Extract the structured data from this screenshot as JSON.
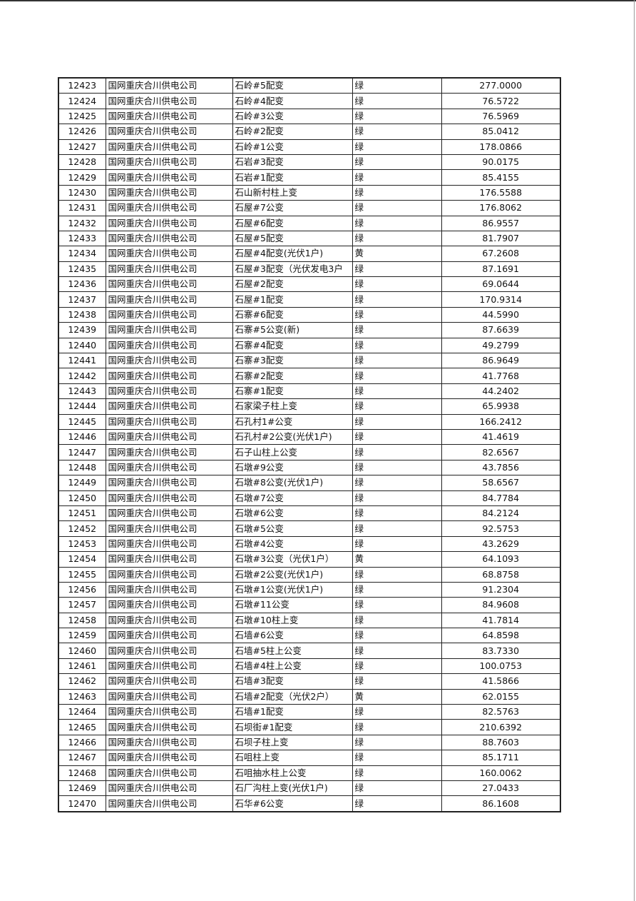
{
  "company": "国网重庆合川供电公司",
  "rows": [
    [
      "12423",
      "国网重庆合川供电公司",
      "石岭#5配变",
      "绿",
      "277.0000"
    ],
    [
      "12424",
      "国网重庆合川供电公司",
      "石岭#4配变",
      "绿",
      "76.5722"
    ],
    [
      "12425",
      "国网重庆合川供电公司",
      "石岭#3公变",
      "绿",
      "76.5969"
    ],
    [
      "12426",
      "国网重庆合川供电公司",
      "石岭#2配变",
      "绿",
      "85.0412"
    ],
    [
      "12427",
      "国网重庆合川供电公司",
      "石岭#1公变",
      "绿",
      "178.0866"
    ],
    [
      "12428",
      "国网重庆合川供电公司",
      "石岩#3配变",
      "绿",
      "90.0175"
    ],
    [
      "12429",
      "国网重庆合川供电公司",
      "石岩#1配变",
      "绿",
      "85.4155"
    ],
    [
      "12430",
      "国网重庆合川供电公司",
      "石山新村柱上变",
      "绿",
      "176.5588"
    ],
    [
      "12431",
      "国网重庆合川供电公司",
      "石屋#7公变",
      "绿",
      "176.8062"
    ],
    [
      "12432",
      "国网重庆合川供电公司",
      "石屋#6配变",
      "绿",
      "86.9557"
    ],
    [
      "12433",
      "国网重庆合川供电公司",
      "石屋#5配变",
      "绿",
      "81.7907"
    ],
    [
      "12434",
      "国网重庆合川供电公司",
      "石屋#4配变(光伏1户)",
      "黄",
      "67.2608"
    ],
    [
      "12435",
      "国网重庆合川供电公司",
      "石屋#3配变（光伏发电3户",
      "绿",
      "87.1691"
    ],
    [
      "12436",
      "国网重庆合川供电公司",
      "石屋#2配变",
      "绿",
      "69.0644"
    ],
    [
      "12437",
      "国网重庆合川供电公司",
      "石屋#1配变",
      "绿",
      "170.9314"
    ],
    [
      "12438",
      "国网重庆合川供电公司",
      "石寨#6配变",
      "绿",
      "44.5990"
    ],
    [
      "12439",
      "国网重庆合川供电公司",
      "石寨#5公变(新)",
      "绿",
      "87.6639"
    ],
    [
      "12440",
      "国网重庆合川供电公司",
      "石寨#4配变",
      "绿",
      "49.2799"
    ],
    [
      "12441",
      "国网重庆合川供电公司",
      "石寨#3配变",
      "绿",
      "86.9649"
    ],
    [
      "12442",
      "国网重庆合川供电公司",
      "石寨#2配变",
      "绿",
      "41.7768"
    ],
    [
      "12443",
      "国网重庆合川供电公司",
      "石寨#1配变",
      "绿",
      "44.2402"
    ],
    [
      "12444",
      "国网重庆合川供电公司",
      "石家梁子柱上变",
      "绿",
      "65.9938"
    ],
    [
      "12445",
      "国网重庆合川供电公司",
      "石孔村1#公变",
      "绿",
      "166.2412"
    ],
    [
      "12446",
      "国网重庆合川供电公司",
      "石孔村#2公变(光伏1户)",
      "绿",
      "41.4619"
    ],
    [
      "12447",
      "国网重庆合川供电公司",
      "石子山柱上公变",
      "绿",
      "82.6567"
    ],
    [
      "12448",
      "国网重庆合川供电公司",
      "石墩#9公变",
      "绿",
      "43.7856"
    ],
    [
      "12449",
      "国网重庆合川供电公司",
      "石墩#8公变(光伏1户)",
      "绿",
      "58.6567"
    ],
    [
      "12450",
      "国网重庆合川供电公司",
      "石墩#7公变",
      "绿",
      "84.7784"
    ],
    [
      "12451",
      "国网重庆合川供电公司",
      "石墩#6公变",
      "绿",
      "84.2124"
    ],
    [
      "12452",
      "国网重庆合川供电公司",
      "石墩#5公变",
      "绿",
      "92.5753"
    ],
    [
      "12453",
      "国网重庆合川供电公司",
      "石墩#4公变",
      "绿",
      "43.2629"
    ],
    [
      "12454",
      "国网重庆合川供电公司",
      "石墩#3公变（光伏1户）",
      "黄",
      "64.1093"
    ],
    [
      "12455",
      "国网重庆合川供电公司",
      "石墩#2公变(光伏1户)",
      "绿",
      "68.8758"
    ],
    [
      "12456",
      "国网重庆合川供电公司",
      "石墩#1公变(光伏1户)",
      "绿",
      "91.2304"
    ],
    [
      "12457",
      "国网重庆合川供电公司",
      "石墩#11公变",
      "绿",
      "84.9608"
    ],
    [
      "12458",
      "国网重庆合川供电公司",
      "石墩#10柱上变",
      "绿",
      "41.7814"
    ],
    [
      "12459",
      "国网重庆合川供电公司",
      "石墙#6公变",
      "绿",
      "64.8598"
    ],
    [
      "12460",
      "国网重庆合川供电公司",
      "石墙#5柱上公变",
      "绿",
      "83.7330"
    ],
    [
      "12461",
      "国网重庆合川供电公司",
      "石墙#4柱上公变",
      "绿",
      "100.0753"
    ],
    [
      "12462",
      "国网重庆合川供电公司",
      "石墙#3配变",
      "绿",
      "41.5866"
    ],
    [
      "12463",
      "国网重庆合川供电公司",
      "石墙#2配变（光伏2户）",
      "黄",
      "62.0155"
    ],
    [
      "12464",
      "国网重庆合川供电公司",
      "石墙#1配变",
      "绿",
      "82.5763"
    ],
    [
      "12465",
      "国网重庆合川供电公司",
      "石坝街#1配变",
      "绿",
      "210.6392"
    ],
    [
      "12466",
      "国网重庆合川供电公司",
      "石坝子柱上变",
      "绿",
      "88.7603"
    ],
    [
      "12467",
      "国网重庆合川供电公司",
      "石咀柱上变",
      "绿",
      "85.1711"
    ],
    [
      "12468",
      "国网重庆合川供电公司",
      "石咀抽水柱上公变",
      "绿",
      "160.0062"
    ],
    [
      "12469",
      "国网重庆合川供电公司",
      "石厂沟柱上变(光伏1户)",
      "绿",
      "27.0433"
    ],
    [
      "12470",
      "国网重庆合川供电公司",
      "石华#6公变",
      "绿",
      "86.1608"
    ]
  ]
}
